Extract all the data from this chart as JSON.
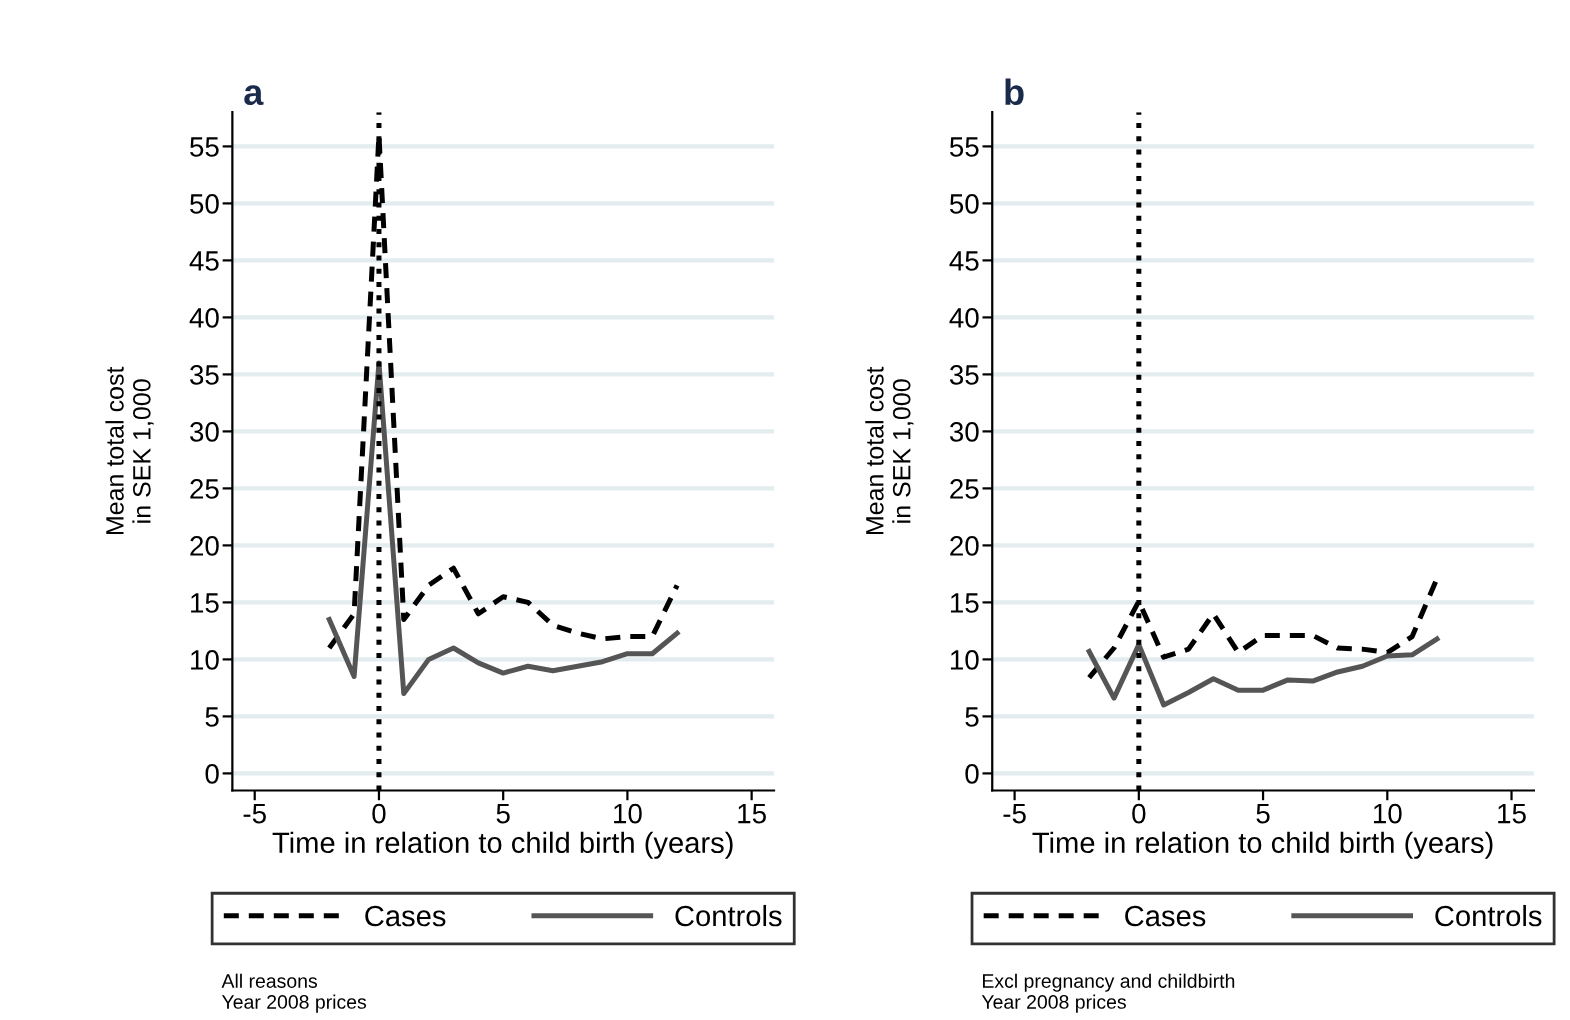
{
  "chart_data": [
    {
      "type": "line",
      "title": "a",
      "xlabel": "Time in relation to child birth (years)",
      "ylabel": "Mean total cost\nin SEK 1,000",
      "x": [
        -2,
        -1,
        0,
        1,
        2,
        3,
        4,
        5,
        6,
        7,
        8,
        9,
        10,
        11,
        12
      ],
      "series": [
        {
          "name": "Cases",
          "color": "#000000",
          "line_style": "dashed",
          "values": [
            11,
            14,
            56,
            13.5,
            16.5,
            18,
            14,
            15.5,
            15,
            13,
            12.3,
            11.8,
            12,
            12,
            16.5
          ]
        },
        {
          "name": "Controls",
          "color": "#555555",
          "line_style": "solid",
          "values": [
            13.5,
            8.5,
            36,
            7,
            10,
            11,
            9.7,
            8.8,
            9.4,
            9,
            9.4,
            9.8,
            10.5,
            10.5,
            12.3
          ]
        }
      ],
      "xlim": [
        -5.9,
        15.9
      ],
      "xticks": [
        -5,
        0,
        5,
        10,
        15
      ],
      "ylim": [
        -1.5,
        58
      ],
      "yticks": [
        0,
        5,
        10,
        15,
        20,
        25,
        30,
        35,
        40,
        45,
        50,
        55
      ],
      "ref_lines": [
        {
          "axis": "x",
          "value": 0,
          "color": "#000000",
          "line_style": "dotted"
        }
      ],
      "grid": "y",
      "legend": "bottom",
      "annotations": [
        "All reasons\nYear 2008 prices"
      ]
    },
    {
      "type": "line",
      "title": "b",
      "xlabel": "Time in relation to child birth (years)",
      "ylabel": "Mean total cost\nin SEK 1,000",
      "x": [
        -2,
        -1,
        0,
        1,
        2,
        3,
        4,
        5,
        6,
        7,
        8,
        9,
        10,
        11,
        12
      ],
      "series": [
        {
          "name": "Cases",
          "color": "#000000",
          "line_style": "dashed",
          "values": [
            8.4,
            11,
            15.1,
            10.2,
            10.9,
            14,
            10.6,
            12.1,
            12.1,
            12.1,
            11,
            10.9,
            10.6,
            12,
            17.1
          ]
        },
        {
          "name": "Controls",
          "color": "#555555",
          "line_style": "solid",
          "values": [
            10.7,
            6.6,
            11.3,
            6,
            7.1,
            8.3,
            7.3,
            7.3,
            8.2,
            8.1,
            8.9,
            9.4,
            10.3,
            10.4,
            11.8
          ]
        }
      ],
      "xlim": [
        -5.9,
        15.9
      ],
      "xticks": [
        -5,
        0,
        5,
        10,
        15
      ],
      "ylim": [
        -1.5,
        58
      ],
      "yticks": [
        0,
        5,
        10,
        15,
        20,
        25,
        30,
        35,
        40,
        45,
        50,
        55
      ],
      "ref_lines": [
        {
          "axis": "x",
          "value": 0,
          "color": "#000000",
          "line_style": "dotted"
        }
      ],
      "grid": "y",
      "legend": "bottom",
      "annotations": [
        "Excl pregnancy and childbirth\nYear 2008 prices"
      ]
    }
  ]
}
